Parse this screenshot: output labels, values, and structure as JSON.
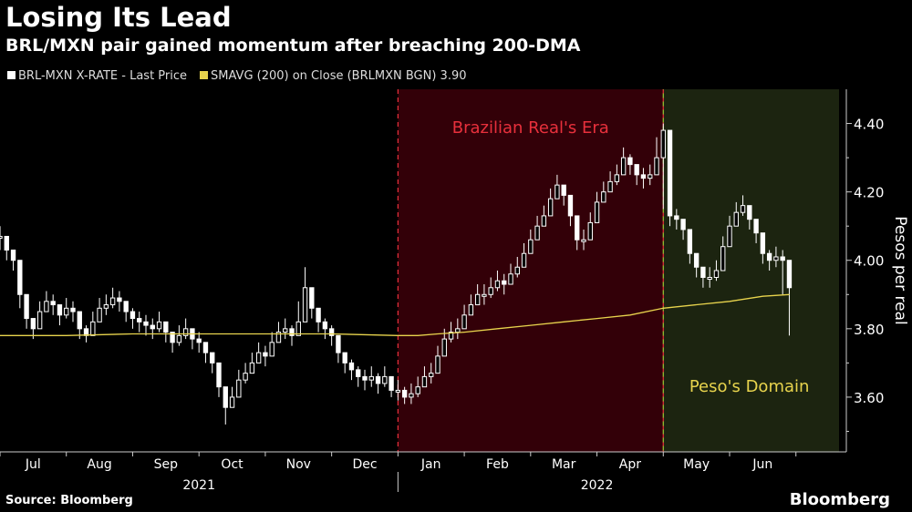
{
  "header": {
    "title": "Losing Its Lead",
    "subtitle": "BRL/MXN pair gained momentum after breaching 200-DMA"
  },
  "legend": {
    "price_label": "BRL-MXN X-RATE - Last Price",
    "sma_label": "SMAVG (200)  on Close (BRLMXN BGN) 3.90"
  },
  "footer": {
    "source": "Source: Bloomberg",
    "brand": "Bloomberg"
  },
  "colors": {
    "background": "#000000",
    "price": "#ffffff",
    "sma": "#e8d44d",
    "real_era_fill": "#330008",
    "peso_domain_fill": "#1c2410",
    "real_era_text": "#e8303c",
    "peso_domain_text": "#e8d44d",
    "boundary_red": "#e8303c",
    "boundary_green": "#9acd32"
  },
  "chart_data": {
    "type": "line",
    "title": "Losing Its Lead",
    "subtitle": "BRL/MXN pair gained momentum after breaching 200-DMA",
    "ylabel": "Pesos per real",
    "ylim": [
      3.44,
      4.5
    ],
    "y_ticks": [
      3.6,
      3.8,
      4.0,
      4.2,
      4.4
    ],
    "y_tick_labels": [
      "3.60",
      "3.80",
      "4.00",
      "4.20",
      "4.40"
    ],
    "x_range_months": [
      6.0,
      18.65
    ],
    "x_month_ticks": [
      {
        "m": 6.5,
        "label": "Jul"
      },
      {
        "m": 7.5,
        "label": "Aug"
      },
      {
        "m": 8.5,
        "label": "Sep"
      },
      {
        "m": 9.5,
        "label": "Oct"
      },
      {
        "m": 10.5,
        "label": "Nov"
      },
      {
        "m": 11.5,
        "label": "Dec"
      },
      {
        "m": 12.5,
        "label": "Jan"
      },
      {
        "m": 13.5,
        "label": "Feb"
      },
      {
        "m": 14.5,
        "label": "Mar"
      },
      {
        "m": 15.5,
        "label": "Apr"
      },
      {
        "m": 16.5,
        "label": "May"
      },
      {
        "m": 17.5,
        "label": "Jun"
      }
    ],
    "year_labels": [
      {
        "m": 9.0,
        "label": "2021"
      },
      {
        "m": 15.0,
        "label": "2022"
      }
    ],
    "grid": false,
    "legend_position": "top-left",
    "series": [
      {
        "name": "BRL-MXN X-RATE - Last Price",
        "style": "candlestick-like",
        "x": [
          6.0,
          6.1,
          6.2,
          6.3,
          6.4,
          6.5,
          6.6,
          6.7,
          6.8,
          6.9,
          7.0,
          7.1,
          7.2,
          7.3,
          7.4,
          7.5,
          7.6,
          7.7,
          7.8,
          7.9,
          8.0,
          8.1,
          8.2,
          8.3,
          8.4,
          8.5,
          8.6,
          8.7,
          8.8,
          8.9,
          9.0,
          9.1,
          9.2,
          9.3,
          9.4,
          9.5,
          9.6,
          9.7,
          9.8,
          9.9,
          10.0,
          10.1,
          10.2,
          10.3,
          10.4,
          10.5,
          10.6,
          10.7,
          10.8,
          10.9,
          11.0,
          11.1,
          11.2,
          11.3,
          11.4,
          11.5,
          11.6,
          11.7,
          11.8,
          11.9,
          12.0,
          12.1,
          12.2,
          12.3,
          12.4,
          12.5,
          12.6,
          12.7,
          12.8,
          12.9,
          13.0,
          13.1,
          13.2,
          13.3,
          13.4,
          13.5,
          13.6,
          13.7,
          13.8,
          13.9,
          14.0,
          14.1,
          14.2,
          14.3,
          14.4,
          14.5,
          14.6,
          14.7,
          14.8,
          14.9,
          15.0,
          15.1,
          15.2,
          15.3,
          15.4,
          15.5,
          15.6,
          15.7,
          15.8,
          15.9,
          16.0,
          16.1,
          16.2,
          16.3,
          16.4,
          16.5,
          16.6,
          16.7,
          16.8,
          16.9,
          17.0,
          17.1,
          17.2,
          17.3,
          17.4,
          17.5,
          17.6,
          17.7,
          17.8,
          17.9
        ],
        "values": [
          4.07,
          4.03,
          4.0,
          3.9,
          3.83,
          3.8,
          3.85,
          3.88,
          3.87,
          3.84,
          3.86,
          3.85,
          3.8,
          3.78,
          3.82,
          3.86,
          3.87,
          3.89,
          3.88,
          3.85,
          3.83,
          3.82,
          3.81,
          3.8,
          3.82,
          3.79,
          3.76,
          3.78,
          3.8,
          3.77,
          3.76,
          3.73,
          3.7,
          3.63,
          3.57,
          3.6,
          3.65,
          3.67,
          3.7,
          3.73,
          3.72,
          3.76,
          3.79,
          3.8,
          3.78,
          3.82,
          3.92,
          3.86,
          3.82,
          3.8,
          3.78,
          3.73,
          3.7,
          3.68,
          3.66,
          3.65,
          3.66,
          3.64,
          3.66,
          3.62,
          3.62,
          3.6,
          3.61,
          3.63,
          3.66,
          3.67,
          3.72,
          3.77,
          3.79,
          3.8,
          3.84,
          3.87,
          3.9,
          3.9,
          3.92,
          3.94,
          3.93,
          3.96,
          3.98,
          4.02,
          4.06,
          4.1,
          4.13,
          4.18,
          4.22,
          4.19,
          4.13,
          4.06,
          4.06,
          4.11,
          4.17,
          4.2,
          4.23,
          4.25,
          4.3,
          4.28,
          4.25,
          4.24,
          4.25,
          4.3,
          4.38,
          4.13,
          4.12,
          4.09,
          4.02,
          3.98,
          3.95,
          3.95,
          3.97,
          4.04,
          4.1,
          4.14,
          4.16,
          4.12,
          4.08,
          4.02,
          4.0,
          4.01,
          4.0,
          3.92
        ],
        "low": [
          4.03,
          4.0,
          3.97,
          3.86,
          3.8,
          3.77,
          3.82,
          3.85,
          3.84,
          3.81,
          3.83,
          3.82,
          3.77,
          3.76,
          3.79,
          3.83,
          3.84,
          3.86,
          3.85,
          3.82,
          3.8,
          3.79,
          3.78,
          3.77,
          3.79,
          3.76,
          3.73,
          3.75,
          3.77,
          3.74,
          3.73,
          3.7,
          3.67,
          3.6,
          3.52,
          3.57,
          3.62,
          3.64,
          3.67,
          3.7,
          3.69,
          3.73,
          3.76,
          3.77,
          3.75,
          3.79,
          3.85,
          3.83,
          3.79,
          3.77,
          3.75,
          3.7,
          3.67,
          3.65,
          3.63,
          3.62,
          3.63,
          3.61,
          3.63,
          3.6,
          3.59,
          3.58,
          3.58,
          3.6,
          3.63,
          3.64,
          3.69,
          3.74,
          3.76,
          3.77,
          3.81,
          3.84,
          3.87,
          3.87,
          3.89,
          3.91,
          3.9,
          3.93,
          3.95,
          3.99,
          4.03,
          4.07,
          4.1,
          4.15,
          4.19,
          4.16,
          4.1,
          4.03,
          4.03,
          4.08,
          4.14,
          4.17,
          4.2,
          4.22,
          4.27,
          4.25,
          4.22,
          4.21,
          4.22,
          4.27,
          4.15,
          4.1,
          4.09,
          4.06,
          3.99,
          3.95,
          3.92,
          3.92,
          3.94,
          4.01,
          4.07,
          4.11,
          4.13,
          4.09,
          4.05,
          3.99,
          3.97,
          3.98,
          3.9,
          3.78
        ],
        "high": [
          4.1,
          4.06,
          4.03,
          3.94,
          3.86,
          3.83,
          3.88,
          3.91,
          3.9,
          3.87,
          3.89,
          3.88,
          3.83,
          3.81,
          3.85,
          3.89,
          3.9,
          3.92,
          3.91,
          3.88,
          3.86,
          3.85,
          3.84,
          3.83,
          3.85,
          3.82,
          3.79,
          3.81,
          3.83,
          3.8,
          3.79,
          3.76,
          3.73,
          3.66,
          3.6,
          3.63,
          3.68,
          3.7,
          3.73,
          3.76,
          3.75,
          3.79,
          3.82,
          3.83,
          3.81,
          3.88,
          3.98,
          3.89,
          3.85,
          3.83,
          3.81,
          3.76,
          3.73,
          3.71,
          3.69,
          3.68,
          3.69,
          3.67,
          3.69,
          3.65,
          3.65,
          3.63,
          3.64,
          3.66,
          3.69,
          3.7,
          3.75,
          3.8,
          3.82,
          3.83,
          3.87,
          3.9,
          3.93,
          3.93,
          3.95,
          3.97,
          3.96,
          3.99,
          4.01,
          4.05,
          4.09,
          4.13,
          4.16,
          4.21,
          4.25,
          4.22,
          4.16,
          4.09,
          4.09,
          4.14,
          4.2,
          4.23,
          4.26,
          4.28,
          4.33,
          4.31,
          4.28,
          4.27,
          4.28,
          4.36,
          4.4,
          4.16,
          4.15,
          4.12,
          4.05,
          4.01,
          3.98,
          3.98,
          4.0,
          4.07,
          4.13,
          4.17,
          4.19,
          4.15,
          4.11,
          4.05,
          4.03,
          4.04,
          4.03,
          3.95
        ]
      },
      {
        "name": "SMAVG (200)  on Close (BRLMXN BGN) 3.90",
        "x": [
          6.0,
          7.0,
          8.0,
          9.0,
          10.0,
          11.0,
          12.0,
          12.3,
          12.6,
          13.0,
          13.5,
          14.0,
          14.5,
          15.0,
          15.5,
          16.0,
          16.5,
          17.0,
          17.5,
          17.9
        ],
        "values": [
          3.78,
          3.78,
          3.785,
          3.785,
          3.785,
          3.785,
          3.78,
          3.78,
          3.785,
          3.79,
          3.8,
          3.81,
          3.82,
          3.83,
          3.84,
          3.86,
          3.87,
          3.88,
          3.895,
          3.9
        ]
      }
    ],
    "annotations": [
      {
        "label": "Brazilian Real's Era",
        "x_start": 12.0,
        "x_end": 16.0
      },
      {
        "label": "Peso's Domain",
        "x_start": 16.0,
        "x_end": 18.65
      }
    ]
  }
}
